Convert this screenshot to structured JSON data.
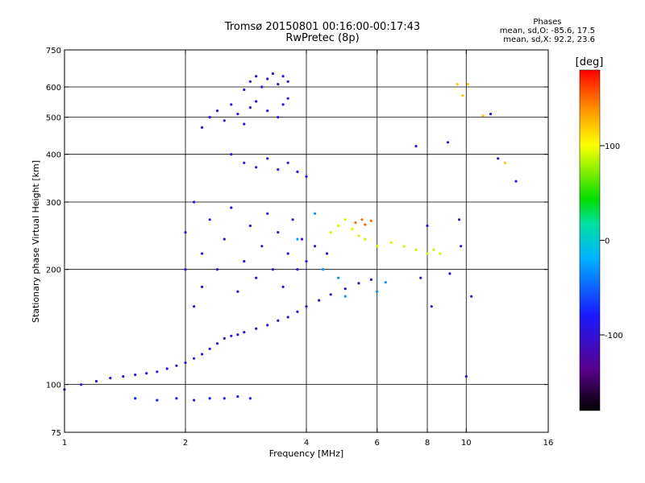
{
  "title": "Tromsø 20150801 00:16:00-00:17:43",
  "subtitle": "RwPretec (8p)",
  "phase_stats": {
    "header": "Phases",
    "line_o": "mean, sd,O: -85.6, 17.5",
    "line_x": "mean, sd,X:  92.2, 23.6"
  },
  "chart_data": {
    "type": "scatter",
    "xlabel": "Frequency [MHz]",
    "ylabel": "Stationary phase Virtual Height [km]",
    "xscale": "log",
    "yscale": "log",
    "xlim": [
      1,
      16
    ],
    "ylim": [
      75,
      750
    ],
    "x_ticks": [
      1,
      2,
      4,
      6,
      8,
      10,
      16
    ],
    "y_ticks": [
      75,
      100,
      200,
      300,
      400,
      500,
      600,
      750
    ],
    "x_grid": [
      2,
      4,
      6,
      8,
      10
    ],
    "y_grid": [
      100,
      200,
      300,
      400,
      500,
      600
    ],
    "grid": true,
    "colorbar": {
      "label": "[deg]",
      "range": [
        -180,
        180
      ],
      "ticks": [
        100,
        0,
        -100
      ],
      "colormap": "rainbow (black→violet→blue→cyan→green→yellow→red)"
    },
    "series": [
      {
        "description": "O-mode trace, low ramp",
        "phase_deg": -95,
        "points": [
          [
            1.0,
            97
          ],
          [
            1.1,
            100
          ],
          [
            1.2,
            102
          ],
          [
            1.3,
            104
          ],
          [
            1.4,
            105
          ],
          [
            1.5,
            106
          ],
          [
            1.6,
            107
          ],
          [
            1.7,
            108
          ],
          [
            1.8,
            110
          ],
          [
            1.9,
            112
          ],
          [
            2.0,
            114
          ],
          [
            2.1,
            117
          ],
          [
            2.2,
            120
          ],
          [
            2.3,
            124
          ],
          [
            2.4,
            128
          ],
          [
            2.5,
            132
          ],
          [
            2.6,
            134
          ],
          [
            2.7,
            135
          ]
        ]
      },
      {
        "description": "O-mode trace, F2 ramp",
        "phase_deg": -110,
        "points": [
          [
            2.8,
            137
          ],
          [
            3.0,
            140
          ],
          [
            3.2,
            143
          ],
          [
            3.4,
            147
          ],
          [
            3.6,
            150
          ],
          [
            3.8,
            155
          ],
          [
            4.0,
            160
          ],
          [
            4.3,
            166
          ],
          [
            4.6,
            172
          ],
          [
            5.0,
            178
          ],
          [
            5.4,
            184
          ],
          [
            5.8,
            188
          ]
        ]
      },
      {
        "description": "Lower band near 92 km",
        "phase_deg": -80,
        "points": [
          [
            1.5,
            92
          ],
          [
            1.7,
            91
          ],
          [
            1.9,
            92
          ],
          [
            2.1,
            91
          ],
          [
            2.3,
            92
          ],
          [
            2.5,
            92
          ],
          [
            2.7,
            93
          ],
          [
            2.9,
            92
          ]
        ]
      },
      {
        "description": "Dense spread-F region",
        "phase_deg": -100,
        "points": [
          [
            2.0,
            200
          ],
          [
            2.0,
            250
          ],
          [
            2.1,
            160
          ],
          [
            2.1,
            300
          ],
          [
            2.2,
            180
          ],
          [
            2.2,
            220
          ],
          [
            2.3,
            270
          ],
          [
            2.4,
            200
          ],
          [
            2.5,
            240
          ],
          [
            2.6,
            290
          ],
          [
            2.7,
            175
          ],
          [
            2.8,
            210
          ],
          [
            2.9,
            260
          ],
          [
            3.0,
            190
          ],
          [
            3.1,
            230
          ],
          [
            3.2,
            280
          ],
          [
            3.3,
            200
          ],
          [
            3.4,
            250
          ],
          [
            3.5,
            180
          ],
          [
            3.6,
            220
          ],
          [
            3.7,
            270
          ],
          [
            3.8,
            200
          ],
          [
            3.9,
            240
          ],
          [
            4.0,
            210
          ],
          [
            4.2,
            230
          ],
          [
            4.5,
            220
          ]
        ]
      },
      {
        "description": "Upper cluster 430-560 km",
        "phase_deg": -90,
        "points": [
          [
            2.2,
            470
          ],
          [
            2.3,
            500
          ],
          [
            2.4,
            520
          ],
          [
            2.5,
            490
          ],
          [
            2.6,
            540
          ],
          [
            2.7,
            510
          ],
          [
            2.8,
            480
          ],
          [
            2.9,
            530
          ],
          [
            3.0,
            550
          ],
          [
            3.2,
            520
          ],
          [
            3.4,
            500
          ],
          [
            3.5,
            540
          ],
          [
            3.6,
            560
          ]
        ]
      },
      {
        "description": "Top cluster 580-650 km",
        "phase_deg": -105,
        "points": [
          [
            2.8,
            590
          ],
          [
            2.9,
            620
          ],
          [
            3.0,
            640
          ],
          [
            3.1,
            600
          ],
          [
            3.2,
            630
          ],
          [
            3.3,
            650
          ],
          [
            3.4,
            610
          ],
          [
            3.5,
            640
          ],
          [
            3.6,
            620
          ]
        ]
      },
      {
        "description": "Sparse scatter 360-420 km",
        "phase_deg": -95,
        "points": [
          [
            2.6,
            400
          ],
          [
            2.8,
            380
          ],
          [
            3.0,
            370
          ],
          [
            3.2,
            390
          ],
          [
            3.4,
            365
          ],
          [
            3.6,
            380
          ],
          [
            3.8,
            360
          ],
          [
            4.0,
            350
          ]
        ]
      },
      {
        "description": "X-mode like points (positive phase)",
        "phase_deg": 90,
        "points": [
          [
            4.6,
            250
          ],
          [
            4.8,
            260
          ],
          [
            5.0,
            270
          ],
          [
            5.2,
            255
          ],
          [
            5.4,
            245
          ],
          [
            5.6,
            240
          ],
          [
            6.0,
            230
          ],
          [
            6.5,
            235
          ],
          [
            7.0,
            230
          ],
          [
            7.5,
            225
          ],
          [
            8.0,
            220
          ],
          [
            8.3,
            225
          ],
          [
            8.6,
            220
          ]
        ]
      },
      {
        "description": "High-phase points near 255-270 km",
        "phase_deg": 150,
        "points": [
          [
            5.3,
            265
          ],
          [
            5.5,
            270
          ],
          [
            5.6,
            262
          ],
          [
            5.8,
            268
          ]
        ]
      },
      {
        "description": "Cyan scatter",
        "phase_deg": -30,
        "points": [
          [
            3.8,
            240
          ],
          [
            4.2,
            280
          ],
          [
            4.4,
            200
          ],
          [
            4.8,
            190
          ],
          [
            5.0,
            170
          ],
          [
            6.0,
            175
          ],
          [
            6.3,
            185
          ]
        ]
      },
      {
        "description": "Isolated high-frequency points",
        "phase_deg": -100,
        "points": [
          [
            7.5,
            420
          ],
          [
            7.7,
            190
          ],
          [
            8.0,
            260
          ],
          [
            8.2,
            160
          ],
          [
            9.0,
            430
          ],
          [
            9.1,
            195
          ],
          [
            9.6,
            270
          ],
          [
            9.7,
            230
          ],
          [
            10.0,
            105
          ],
          [
            10.3,
            170
          ],
          [
            11.5,
            510
          ],
          [
            12.0,
            390
          ],
          [
            13.3,
            340
          ]
        ]
      },
      {
        "description": "Isolated warm high-frequency points",
        "phase_deg": 120,
        "points": [
          [
            9.5,
            610
          ],
          [
            9.8,
            570
          ],
          [
            10.1,
            610
          ],
          [
            11.0,
            505
          ],
          [
            12.5,
            380
          ]
        ]
      }
    ]
  }
}
